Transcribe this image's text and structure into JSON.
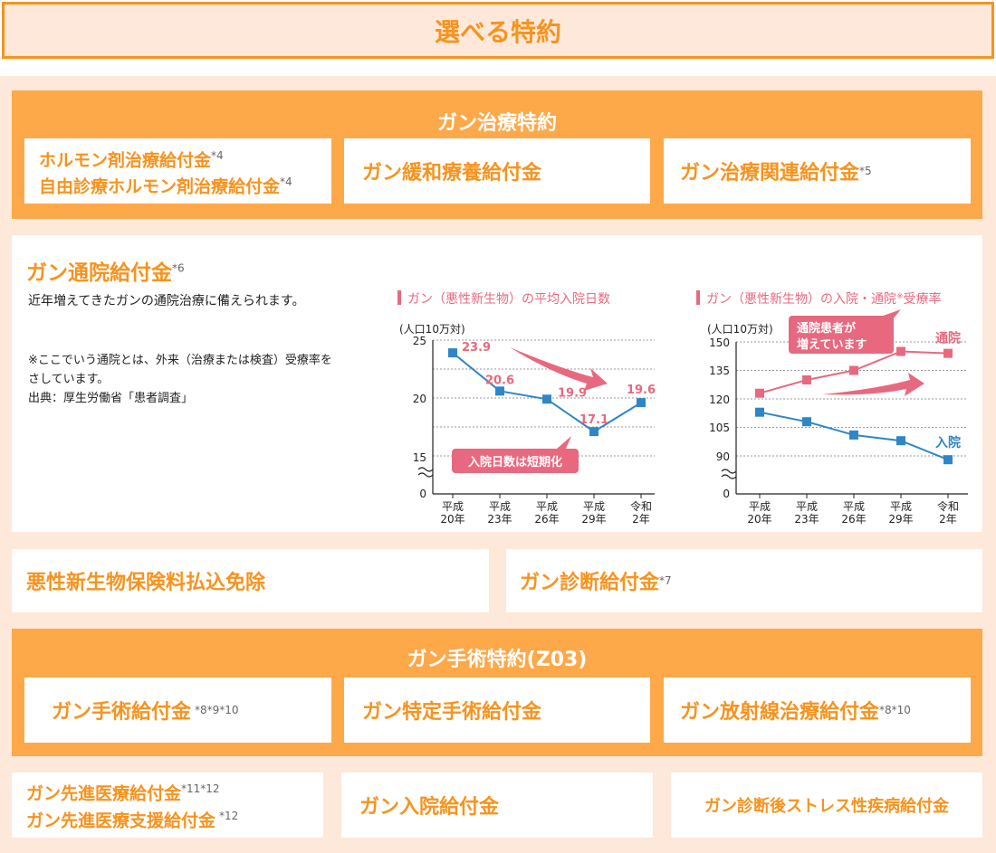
{
  "header": {
    "title": "選べる特約"
  },
  "cancer_treatment": {
    "title": "ガン治療特約",
    "cards": [
      {
        "line1": "ホルモン剤治療給付金",
        "sup1": "*4",
        "line2": "自由診療ホルモン剤治療給付金",
        "sup2": "*4"
      },
      {
        "label": "ガン緩和療養給付金"
      },
      {
        "label": "ガン治療関連給付金",
        "sup": "*5"
      }
    ]
  },
  "outpatient": {
    "title": "ガン通院給付金",
    "title_sup": "*6",
    "description": "近年増えてきたガンの通院治療に備えられます。",
    "note1": "※ここでいう通院とは、外来（治療または検査）受療率をさしています。",
    "note2": "出典：厚生労働省「患者調査」"
  },
  "chart_data": [
    {
      "type": "line",
      "title": "ガン（悪性新生物）の平均入院日数",
      "unit_label": "(人口10万対)",
      "categories": [
        "平成20年",
        "平成23年",
        "平成26年",
        "平成29年",
        "令和2年"
      ],
      "category_lines": [
        [
          "平成",
          "20年"
        ],
        [
          "平成",
          "23年"
        ],
        [
          "平成",
          "26年"
        ],
        [
          "平成",
          "29年"
        ],
        [
          "令和",
          "2年"
        ]
      ],
      "series": [
        {
          "values": [
            23.9,
            20.6,
            19.9,
            17.1,
            19.6
          ],
          "color": "#2e86c8"
        }
      ],
      "value_labels": [
        "23.9",
        "20.6",
        "19.9",
        "17.1",
        "19.6"
      ],
      "yticks": [
        "25",
        "20",
        "15",
        "0"
      ],
      "axis_break": true,
      "ylim": [
        12.5,
        25
      ],
      "callout": "入院日数は短期化",
      "grid": true
    },
    {
      "type": "line",
      "title": "ガン（悪性新生物）の入院・通院",
      "title_sup": "※",
      "title_tail": "受療率",
      "unit_label": "(人口10万対)",
      "categories": [
        "平成20年",
        "平成23年",
        "平成26年",
        "平成29年",
        "令和2年"
      ],
      "category_lines": [
        [
          "平成",
          "20年"
        ],
        [
          "平成",
          "23年"
        ],
        [
          "平成",
          "26年"
        ],
        [
          "平成",
          "29年"
        ],
        [
          "令和",
          "2年"
        ]
      ],
      "series": [
        {
          "name": "通院",
          "values": [
            123,
            130,
            135,
            145,
            144
          ],
          "color": "#e8697f"
        },
        {
          "name": "入院",
          "values": [
            113,
            108,
            101,
            98,
            88
          ],
          "color": "#2e86c8"
        }
      ],
      "yticks": [
        "150",
        "135",
        "120",
        "105",
        "90",
        "0"
      ],
      "axis_break": true,
      "ylim": [
        80,
        150
      ],
      "callout_line1": "通院患者が",
      "callout_line2": "増えています",
      "grid": true
    }
  ],
  "row2": {
    "left": {
      "label": "悪性新生物保険料払込免除"
    },
    "right": {
      "label": "ガン診断給付金",
      "sup": "*7"
    }
  },
  "surgery": {
    "title": "ガン手術特約(Z03)",
    "cards": [
      {
        "label": "ガン手術給付金",
        "sup": "*8*9*10"
      },
      {
        "label": "ガン特定手術給付金"
      },
      {
        "label": "ガン放射線治療給付金",
        "sup": "*8*10"
      }
    ]
  },
  "bottom": {
    "card1": {
      "line1": "ガン先進医療給付金",
      "sup1": "*11*12",
      "line2": "ガン先進医療支援給付金",
      "sup2": "*12"
    },
    "card2": {
      "label": "ガン入院給付金"
    },
    "card3": {
      "label": "ガン診断後ストレス性疾病給付金"
    }
  },
  "colors": {
    "orange": "#f7931e",
    "section": "#fda849",
    "bg": "#fde8da",
    "blue": "#2e86c8",
    "pink": "#e8697f"
  }
}
